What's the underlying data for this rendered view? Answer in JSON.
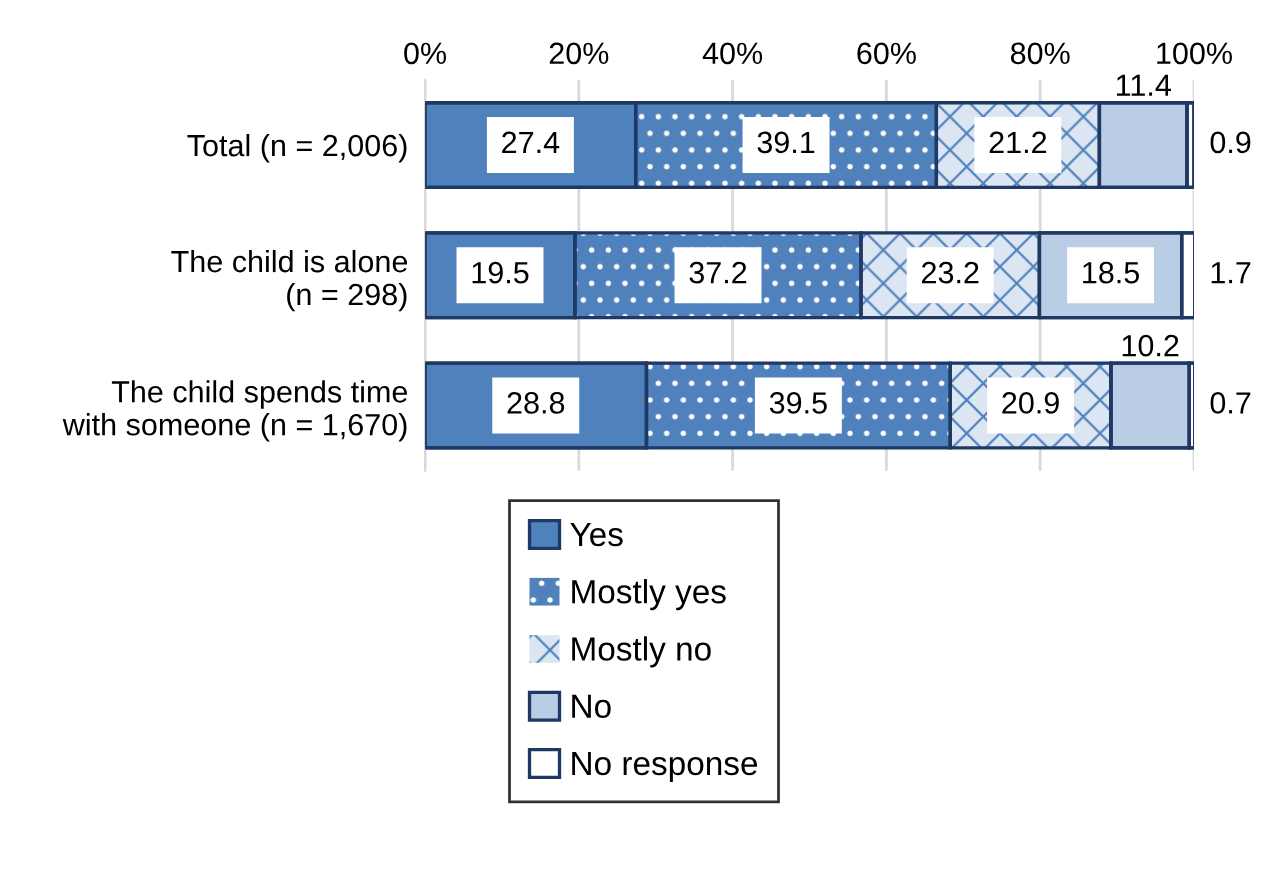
{
  "chart_data": {
    "type": "bar",
    "orientation": "horizontal",
    "stacked": true,
    "categories": [
      "Total (n = 2,006)",
      "The child is alone\n(n = 298)",
      "The child spends time\nwith someone (n = 1,670)"
    ],
    "series": [
      {
        "name": "Yes",
        "color": "#4f81bd",
        "values": [
          27.4,
          19.5,
          28.8
        ]
      },
      {
        "name": "Mostly yes",
        "color": "#4f81bd",
        "values": [
          39.1,
          37.2,
          39.5
        ]
      },
      {
        "name": "Mostly no",
        "color": "#dce6f2",
        "values": [
          21.2,
          23.2,
          20.9
        ]
      },
      {
        "name": "No",
        "color": "#b9cde5",
        "values": [
          11.4,
          18.5,
          10.2
        ]
      },
      {
        "name": "No response",
        "color": "#ffffff",
        "values": [
          0.9,
          1.7,
          0.7
        ]
      }
    ],
    "xlim": [
      0,
      100
    ],
    "xticks": [
      {
        "value": 0,
        "label": "0%"
      },
      {
        "value": 20,
        "label": "20%"
      },
      {
        "value": 40,
        "label": "40%"
      },
      {
        "value": 60,
        "label": "60%"
      },
      {
        "value": 80,
        "label": "80%"
      },
      {
        "value": 100,
        "label": "100%"
      }
    ],
    "grid": "x",
    "legend": "bottom",
    "data_labels": true
  }
}
